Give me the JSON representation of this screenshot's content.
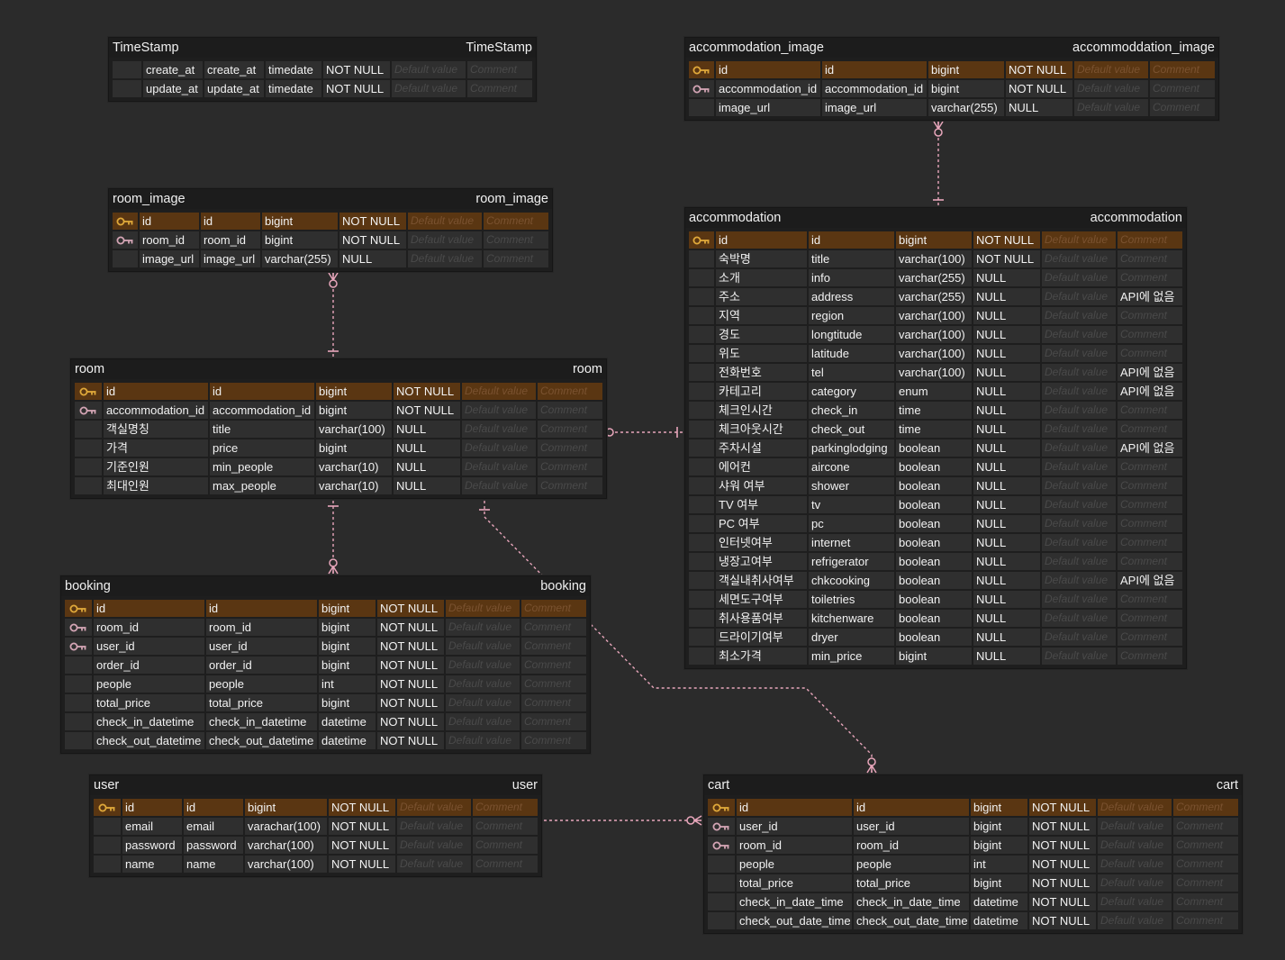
{
  "colors": {
    "background": "#2b2b2b",
    "table": "#1e1e1e",
    "cell": "#2f2f2f",
    "primary_key_row": "#5a3612",
    "primary_key_icon": "#e0a93a",
    "foreign_key_icon": "#d4a5b5",
    "relation_line": "#e8a6bb"
  },
  "placeholders": {
    "default": "Default value",
    "comment": "Comment"
  },
  "tables": {
    "timestamp": {
      "name": "TimeStamp",
      "label": "TimeStamp",
      "rows": [
        {
          "key": "",
          "name": "create_at",
          "field": "create_at",
          "type": "timedate",
          "nullable": "NOT NULL",
          "default": "",
          "comment": ""
        },
        {
          "key": "",
          "name": "update_at",
          "field": "update_at",
          "type": "timedate",
          "nullable": "NOT NULL",
          "default": "",
          "comment": ""
        }
      ]
    },
    "accommodation_image": {
      "name": "accommodation_image",
      "label": "accommoddation_image",
      "rows": [
        {
          "key": "pk",
          "name": "id",
          "field": "id",
          "type": "bigint",
          "nullable": "NOT NULL",
          "default": "",
          "comment": ""
        },
        {
          "key": "fk",
          "name": "accommodation_id",
          "field": "accommodation_id",
          "type": "bigint",
          "nullable": "NOT NULL",
          "default": "",
          "comment": ""
        },
        {
          "key": "",
          "name": "image_url",
          "field": "image_url",
          "type": "varchar(255)",
          "nullable": "NULL",
          "default": "",
          "comment": ""
        }
      ]
    },
    "room_image": {
      "name": "room_image",
      "label": "room_image",
      "rows": [
        {
          "key": "pk",
          "name": "id",
          "field": "id",
          "type": "bigint",
          "nullable": "NOT NULL",
          "default": "",
          "comment": ""
        },
        {
          "key": "fk",
          "name": "room_id",
          "field": "room_id",
          "type": "bigint",
          "nullable": "NOT NULL",
          "default": "",
          "comment": ""
        },
        {
          "key": "",
          "name": "image_url",
          "field": "image_url",
          "type": "varchar(255)",
          "nullable": "NULL",
          "default": "",
          "comment": ""
        }
      ]
    },
    "accommodation": {
      "name": "accommodation",
      "label": "accommodation",
      "rows": [
        {
          "key": "pk",
          "name": "id",
          "field": "id",
          "type": "bigint",
          "nullable": "NOT NULL",
          "default": "",
          "comment": ""
        },
        {
          "key": "",
          "name": "숙박명",
          "field": "title",
          "type": "varchar(100)",
          "nullable": "NOT NULL",
          "default": "",
          "comment": ""
        },
        {
          "key": "",
          "name": "소개",
          "field": "info",
          "type": "varchar(255)",
          "nullable": "NULL",
          "default": "",
          "comment": ""
        },
        {
          "key": "",
          "name": "주소",
          "field": "address",
          "type": "varchar(255)",
          "nullable": "NULL",
          "default": "",
          "comment": "API에 없음"
        },
        {
          "key": "",
          "name": "지역",
          "field": "region",
          "type": "varchar(100)",
          "nullable": "NULL",
          "default": "",
          "comment": ""
        },
        {
          "key": "",
          "name": "경도",
          "field": "longtitude",
          "type": "varchar(100)",
          "nullable": "NULL",
          "default": "",
          "comment": ""
        },
        {
          "key": "",
          "name": "위도",
          "field": "latitude",
          "type": "varchar(100)",
          "nullable": "NULL",
          "default": "",
          "comment": ""
        },
        {
          "key": "",
          "name": "전화번호",
          "field": "tel",
          "type": "varchar(100)",
          "nullable": "NULL",
          "default": "",
          "comment": "API에 없음"
        },
        {
          "key": "",
          "name": "카테고리",
          "field": "category",
          "type": "enum",
          "nullable": "NULL",
          "default": "",
          "comment": "API에 없음"
        },
        {
          "key": "",
          "name": "체크인시간",
          "field": "check_in",
          "type": "time",
          "nullable": "NULL",
          "default": "",
          "comment": ""
        },
        {
          "key": "",
          "name": "체크아웃시간",
          "field": "check_out",
          "type": "time",
          "nullable": "NULL",
          "default": "",
          "comment": ""
        },
        {
          "key": "",
          "name": "주차시설",
          "field": "parkinglodging",
          "type": "boolean",
          "nullable": "NULL",
          "default": "",
          "comment": "API에 없음"
        },
        {
          "key": "",
          "name": "에어컨",
          "field": "aircone",
          "type": "boolean",
          "nullable": "NULL",
          "default": "",
          "comment": ""
        },
        {
          "key": "",
          "name": "샤워 여부",
          "field": "shower",
          "type": "boolean",
          "nullable": "NULL",
          "default": "",
          "comment": ""
        },
        {
          "key": "",
          "name": "TV 여부",
          "field": "tv",
          "type": "boolean",
          "nullable": "NULL",
          "default": "",
          "comment": ""
        },
        {
          "key": "",
          "name": "PC 여부",
          "field": "pc",
          "type": "boolean",
          "nullable": "NULL",
          "default": "",
          "comment": ""
        },
        {
          "key": "",
          "name": "인터넷여부",
          "field": "internet",
          "type": "boolean",
          "nullable": "NULL",
          "default": "",
          "comment": ""
        },
        {
          "key": "",
          "name": "냉장고여부",
          "field": "refrigerator",
          "type": "boolean",
          "nullable": "NULL",
          "default": "",
          "comment": ""
        },
        {
          "key": "",
          "name": "객실내취사여부",
          "field": "chkcooking",
          "type": "boolean",
          "nullable": "NULL",
          "default": "",
          "comment": "API에 없음"
        },
        {
          "key": "",
          "name": "세면도구여부",
          "field": "toiletries",
          "type": "boolean",
          "nullable": "NULL",
          "default": "",
          "comment": ""
        },
        {
          "key": "",
          "name": "취사용품여부",
          "field": "kitchenware",
          "type": "boolean",
          "nullable": "NULL",
          "default": "",
          "comment": ""
        },
        {
          "key": "",
          "name": "드라이기여부",
          "field": "dryer",
          "type": "boolean",
          "nullable": "NULL",
          "default": "",
          "comment": ""
        },
        {
          "key": "",
          "name": "최소가격",
          "field": "min_price",
          "type": "bigint",
          "nullable": "NULL",
          "default": "",
          "comment": ""
        }
      ]
    },
    "room": {
      "name": "room",
      "label": "room",
      "rows": [
        {
          "key": "pk",
          "name": "id",
          "field": "id",
          "type": "bigint",
          "nullable": "NOT NULL",
          "default": "",
          "comment": ""
        },
        {
          "key": "fk",
          "name": "accommodation_id",
          "field": "accommodation_id",
          "type": "bigint",
          "nullable": "NOT NULL",
          "default": "",
          "comment": ""
        },
        {
          "key": "",
          "name": "객실명칭",
          "field": "title",
          "type": "varchar(100)",
          "nullable": "NULL",
          "default": "",
          "comment": ""
        },
        {
          "key": "",
          "name": "가격",
          "field": "price",
          "type": "bigint",
          "nullable": "NULL",
          "default": "",
          "comment": ""
        },
        {
          "key": "",
          "name": "기준인원",
          "field": "min_people",
          "type": "varchar(10)",
          "nullable": "NULL",
          "default": "",
          "comment": ""
        },
        {
          "key": "",
          "name": "최대인원",
          "field": "max_people",
          "type": "varchar(10)",
          "nullable": "NULL",
          "default": "",
          "comment": ""
        }
      ]
    },
    "booking": {
      "name": "booking",
      "label": "booking",
      "rows": [
        {
          "key": "pk",
          "name": "id",
          "field": "id",
          "type": "bigint",
          "nullable": "NOT NULL",
          "default": "",
          "comment": ""
        },
        {
          "key": "fk",
          "name": "room_id",
          "field": "room_id",
          "type": "bigint",
          "nullable": "NOT NULL",
          "default": "",
          "comment": ""
        },
        {
          "key": "fk",
          "name": "user_id",
          "field": "user_id",
          "type": "bigint",
          "nullable": "NOT NULL",
          "default": "",
          "comment": ""
        },
        {
          "key": "",
          "name": "order_id",
          "field": "order_id",
          "type": "bigint",
          "nullable": "NOT NULL",
          "default": "",
          "comment": ""
        },
        {
          "key": "",
          "name": "people",
          "field": "people",
          "type": "int",
          "nullable": "NOT NULL",
          "default": "",
          "comment": ""
        },
        {
          "key": "",
          "name": "total_price",
          "field": "total_price",
          "type": "bigint",
          "nullable": "NOT NULL",
          "default": "",
          "comment": ""
        },
        {
          "key": "",
          "name": "check_in_datetime",
          "field": "check_in_datetime",
          "type": "datetime",
          "nullable": "NOT NULL",
          "default": "",
          "comment": ""
        },
        {
          "key": "",
          "name": "check_out_datetime",
          "field": "check_out_datetime",
          "type": "datetime",
          "nullable": "NOT NULL",
          "default": "",
          "comment": ""
        }
      ]
    },
    "user": {
      "name": "user",
      "label": "user",
      "rows": [
        {
          "key": "pk",
          "name": "id",
          "field": "id",
          "type": "bigint",
          "nullable": "NOT NULL",
          "default": "",
          "comment": ""
        },
        {
          "key": "",
          "name": "email",
          "field": "email",
          "type": "varachar(100)",
          "nullable": "NOT NULL",
          "default": "",
          "comment": ""
        },
        {
          "key": "",
          "name": "password",
          "field": "password",
          "type": "varchar(100)",
          "nullable": "NOT NULL",
          "default": "",
          "comment": ""
        },
        {
          "key": "",
          "name": "name",
          "field": "name",
          "type": "varchar(100)",
          "nullable": "NOT NULL",
          "default": "",
          "comment": ""
        }
      ]
    },
    "cart": {
      "name": "cart",
      "label": "cart",
      "rows": [
        {
          "key": "pk",
          "name": "id",
          "field": "id",
          "type": "bigint",
          "nullable": "NOT NULL",
          "default": "",
          "comment": ""
        },
        {
          "key": "fk",
          "name": "user_id",
          "field": "user_id",
          "type": "bigint",
          "nullable": "NOT NULL",
          "default": "",
          "comment": ""
        },
        {
          "key": "fk",
          "name": "room_id",
          "field": "room_id",
          "type": "bigint",
          "nullable": "NOT NULL",
          "default": "",
          "comment": ""
        },
        {
          "key": "",
          "name": "people",
          "field": "people",
          "type": "int",
          "nullable": "NOT NULL",
          "default": "",
          "comment": ""
        },
        {
          "key": "",
          "name": "total_price",
          "field": "total_price",
          "type": "bigint",
          "nullable": "NOT NULL",
          "default": "",
          "comment": ""
        },
        {
          "key": "",
          "name": "check_in_date_time",
          "field": "check_in_date_time",
          "type": "datetime",
          "nullable": "NOT NULL",
          "default": "",
          "comment": ""
        },
        {
          "key": "",
          "name": "check_out_date_time",
          "field": "check_out_date_time",
          "type": "datetime",
          "nullable": "NOT NULL",
          "default": "",
          "comment": ""
        }
      ]
    }
  },
  "relations": [
    {
      "from": "accommodation_image",
      "to": "accommodation",
      "from_marker": "zero-or-many",
      "to_marker": "one"
    },
    {
      "from": "room_image",
      "to": "room",
      "from_marker": "zero-or-many",
      "to_marker": "one"
    },
    {
      "from": "room",
      "to": "accommodation",
      "from_marker": "zero-or-many",
      "to_marker": "one"
    },
    {
      "from": "room",
      "to": "booking",
      "from_marker": "one",
      "to_marker": "zero-or-many"
    },
    {
      "from": "room",
      "to": "cart",
      "from_marker": "one",
      "to_marker": "zero-or-many"
    },
    {
      "from": "user",
      "to": "cart",
      "from_marker": "one",
      "to_marker": "zero-or-many"
    }
  ]
}
